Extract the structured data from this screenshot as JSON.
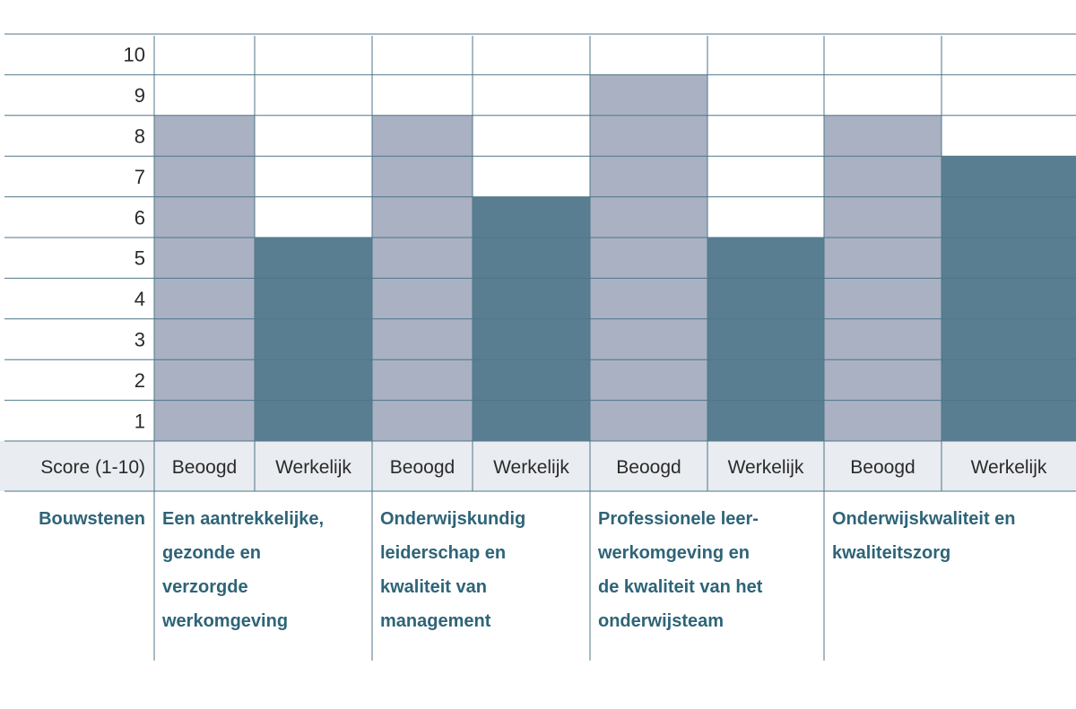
{
  "chart_data": {
    "type": "bar",
    "ylim": [
      0,
      10
    ],
    "yticks": [
      "1",
      "2",
      "3",
      "4",
      "5",
      "6",
      "7",
      "8",
      "9",
      "10"
    ],
    "score_header": "Score (1-10)",
    "row_label": "Bouwstenen",
    "series": [
      {
        "name": "Beoogd",
        "color": "#a9b1c3"
      },
      {
        "name": "Werkelijk",
        "color": "#597e92"
      }
    ],
    "groups": [
      {
        "label_lines": [
          "Een aantrekkelijke,",
          "gezonde en",
          "verzorgde",
          "werkomgeving"
        ],
        "beoogd": 8,
        "werkelijk": 5
      },
      {
        "label_lines": [
          "Onderwijskundig",
          "leiderschap en",
          "kwaliteit van",
          "management"
        ],
        "beoogd": 8,
        "werkelijk": 6
      },
      {
        "label_lines": [
          "Professionele leer-",
          "werkomgeving en",
          "de kwaliteit van het",
          "onderwijsteam"
        ],
        "beoogd": 9,
        "werkelijk": 5
      },
      {
        "label_lines": [
          "Onderwijskwaliteit en",
          "kwaliteitszorg"
        ],
        "beoogd": 8,
        "werkelijk": 7
      }
    ],
    "header_fill": "#e9ecf0",
    "grid_color": "#4f7689",
    "text_color": "#2e6478"
  }
}
